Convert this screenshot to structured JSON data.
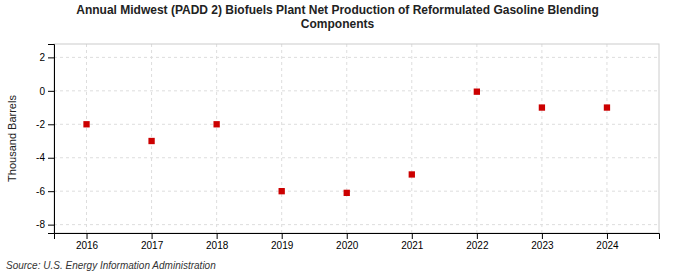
{
  "chart_data": {
    "type": "scatter",
    "title": "Annual Midwest (PADD 2) Biofuels Plant Net Production of Reformulated Gasoline Blending\nComponents",
    "ylabel": "Thousand Barrels",
    "source": "Source: U.S. Energy Information Administration",
    "x": [
      2016,
      2017,
      2018,
      2019,
      2020,
      2021,
      2022,
      2023,
      2024
    ],
    "values": [
      -2.0,
      -3.0,
      -2.0,
      -6.0,
      -6.1,
      -5.0,
      -0.05,
      -1.0,
      -1.0
    ],
    "xlim": [
      2015.5,
      2024.8
    ],
    "xticks": [
      2016,
      2017,
      2018,
      2019,
      2020,
      2021,
      2022,
      2023,
      2024
    ],
    "ylim": [
      -8.5,
      2.8
    ],
    "yticks": [
      -8,
      -6,
      -4,
      -2,
      0,
      2
    ],
    "color": "#cc0000",
    "marker": "square",
    "grid": true
  }
}
